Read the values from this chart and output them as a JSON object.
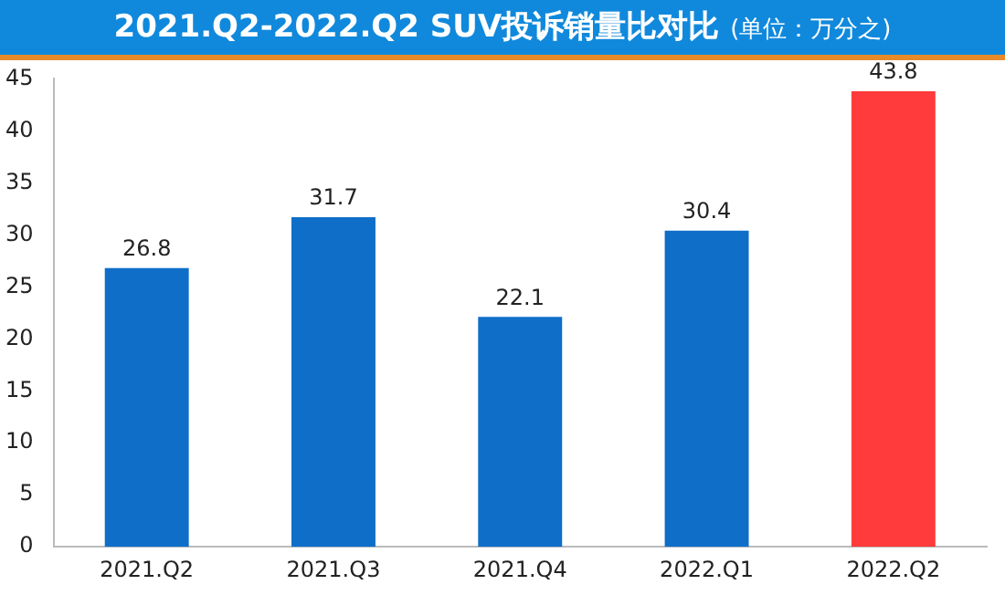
{
  "chart_data": {
    "type": "bar",
    "title": "2021.Q2-2022.Q2 SUV投诉销量比对比",
    "subtitle": "(单位：万分之)",
    "categories": [
      "2021.Q2",
      "2021.Q3",
      "2021.Q4",
      "2022.Q1",
      "2022.Q2"
    ],
    "values": [
      26.8,
      31.7,
      22.1,
      30.4,
      43.8
    ],
    "colors": [
      "#0e6ec8",
      "#0e6ec8",
      "#0e6ec8",
      "#0e6ec8",
      "#ff3b3b"
    ],
    "ylim": [
      0,
      45
    ],
    "yticks": [
      0,
      5,
      10,
      15,
      20,
      25,
      30,
      35,
      40,
      45
    ],
    "grid": false,
    "data_labels": true,
    "legend": false
  }
}
